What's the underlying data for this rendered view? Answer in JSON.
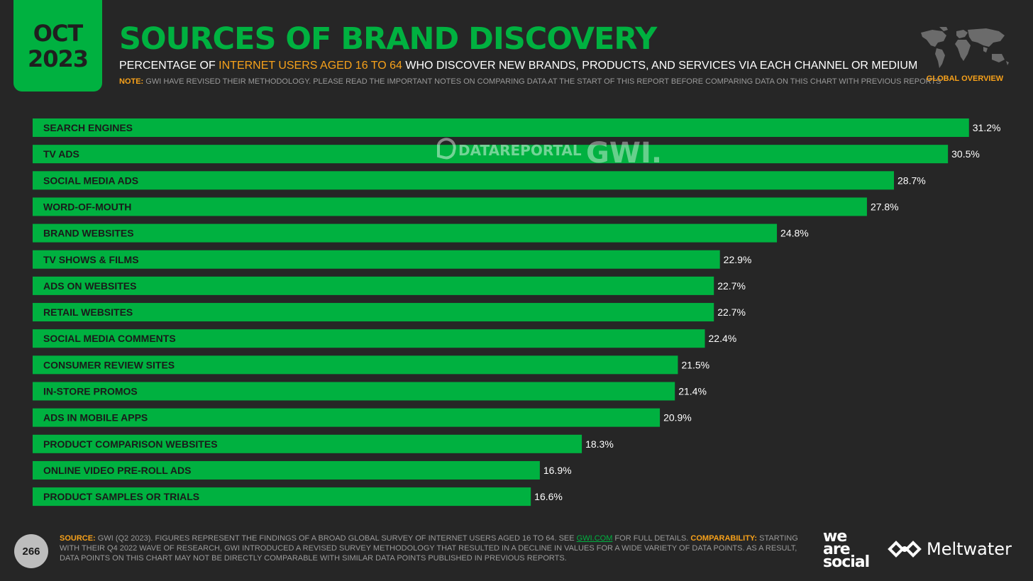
{
  "header": {
    "date_month": "OCT",
    "date_year": "2023",
    "title": "SOURCES OF BRAND DISCOVERY",
    "subtitle_pre": "PERCENTAGE OF ",
    "subtitle_highlight": "INTERNET USERS AGED 16 TO 64",
    "subtitle_post": " WHO DISCOVER NEW BRANDS, PRODUCTS, AND SERVICES VIA EACH CHANNEL OR MEDIUM",
    "note_label": "NOTE:",
    "note_text": " GWI HAVE REVISED THEIR METHODOLOGY. PLEASE READ THE IMPORTANT NOTES ON COMPARING DATA AT THE START OF THIS REPORT BEFORE COMPARING DATA ON THIS CHART WITH PREVIOUS REPORTS",
    "region_label": "GLOBAL OVERVIEW"
  },
  "watermark": {
    "datareportal": "DATAREPORTAL",
    "gwi": "GWI."
  },
  "colors": {
    "accent_green": "#00b140",
    "highlight_orange": "#f7a11a",
    "background": "#262626"
  },
  "chart_data": {
    "type": "bar",
    "orientation": "horizontal",
    "title": "SOURCES OF BRAND DISCOVERY",
    "unit": "%",
    "categories": [
      "SEARCH ENGINES",
      "TV ADS",
      "SOCIAL MEDIA ADS",
      "WORD-OF-MOUTH",
      "BRAND WEBSITES",
      "TV SHOWS & FILMS",
      "ADS ON WEBSITES",
      "RETAIL WEBSITES",
      "SOCIAL MEDIA COMMENTS",
      "CONSUMER REVIEW SITES",
      "IN-STORE PROMOS",
      "ADS IN MOBILE APPS",
      "PRODUCT COMPARISON WEBSITES",
      "ONLINE VIDEO PRE-ROLL ADS",
      "PRODUCT SAMPLES OR TRIALS"
    ],
    "values": [
      31.2,
      30.5,
      28.7,
      27.8,
      24.8,
      22.9,
      22.7,
      22.7,
      22.4,
      21.5,
      21.4,
      20.9,
      18.3,
      16.9,
      16.6
    ],
    "value_labels": [
      "31.2%",
      "30.5%",
      "28.7%",
      "27.8%",
      "24.8%",
      "22.9%",
      "22.7%",
      "22.7%",
      "22.4%",
      "21.5%",
      "21.4%",
      "20.9%",
      "18.3%",
      "16.9%",
      "16.6%"
    ],
    "bar_color": "#00b140"
  },
  "footer": {
    "page_number": "266",
    "source_label": "SOURCE:",
    "source_text_1": " GWI (Q2 2023). FIGURES REPRESENT THE FINDINGS OF A BROAD GLOBAL SURVEY OF INTERNET USERS AGED 16 TO 64. SEE ",
    "source_link": "GWI.COM",
    "source_text_2": " FOR FULL DETAILS. ",
    "comparability_label": "COMPARABILITY:",
    "comparability_text": " STARTING WITH THEIR Q4 2022 WAVE OF RESEARCH, GWI INTRODUCED A REVISED SURVEY METHODOLOGY THAT RESULTED IN A DECLINE IN VALUES FOR A WIDE VARIETY OF DATA POINTS. AS A RESULT, DATA POINTS ON THIS CHART MAY NOT BE DIRECTLY COMPARABLE WITH SIMILAR DATA POINTS PUBLISHED IN PREVIOUS REPORTS.",
    "logo_we": "we",
    "logo_are": "are",
    "logo_social": "social",
    "logo_meltwater": "Meltwater"
  }
}
